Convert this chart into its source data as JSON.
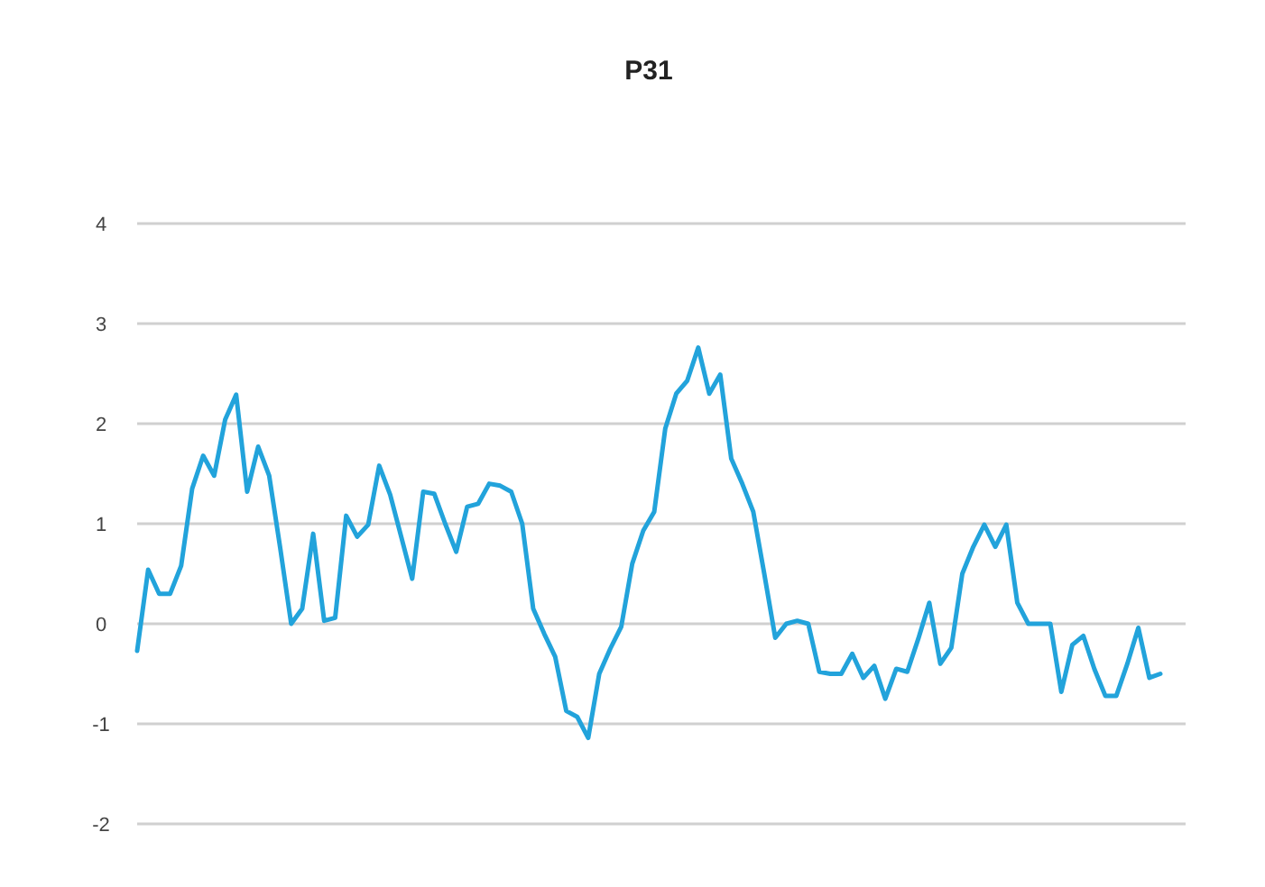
{
  "chart_data": {
    "type": "line",
    "title": "P31",
    "categories": [
      null,
      null,
      null,
      null,
      null,
      null,
      null,
      null,
      null,
      null,
      null,
      null,
      null,
      null,
      null,
      null,
      null,
      null,
      null,
      null,
      null,
      null,
      null,
      null,
      null,
      null,
      null,
      null,
      null,
      null,
      null,
      null,
      null,
      null,
      null,
      null,
      null,
      null,
      null,
      null,
      null,
      null,
      null,
      null,
      null,
      null,
      null,
      null,
      null,
      null,
      null,
      null,
      null,
      null,
      null,
      null,
      null,
      null,
      null,
      null,
      null,
      null,
      null,
      null,
      null,
      null,
      null,
      null,
      null,
      null,
      null,
      null,
      null,
      null,
      null,
      null,
      null,
      null,
      null,
      null,
      null,
      null,
      null,
      null,
      null,
      null,
      null,
      null,
      null,
      null,
      null,
      null,
      null,
      null
    ],
    "series": [
      {
        "color": "#22a3db",
        "values": [
          -0.27,
          0.54,
          0.3,
          0.3,
          0.58,
          1.35,
          1.68,
          1.48,
          2.04,
          2.29,
          1.32,
          1.77,
          1.48,
          0.76,
          0,
          0.15,
          0.9,
          0.03,
          0.06,
          1.08,
          0.87,
          0.99,
          1.58,
          1.29,
          0.87,
          0.45,
          1.32,
          1.3,
          1.0,
          0.72,
          1.17,
          1.2,
          1.4,
          1.38,
          1.32,
          1.0,
          0.15,
          -0.1,
          -0.33,
          -0.87,
          -0.93,
          -1.14,
          -0.5,
          -0.25,
          -0.03,
          0.6,
          0.93,
          1.12,
          1.95,
          2.3,
          2.43,
          2.76,
          2.3,
          2.49,
          1.65,
          1.4,
          1.12,
          0.5,
          -0.14,
          0,
          0.03,
          0,
          -0.48,
          -0.5,
          -0.5,
          -0.3,
          -0.54,
          -0.42,
          -0.75,
          -0.45,
          -0.48,
          -0.15,
          0.21,
          -0.4,
          -0.24,
          0.5,
          0.77,
          0.99,
          0.77,
          0.99,
          0.21,
          0,
          0,
          0,
          -0.68,
          -0.21,
          -0.12,
          -0.45,
          -0.72,
          -0.72,
          -0.4,
          -0.04,
          -0.54,
          -0.5
        ]
      }
    ],
    "ylim": [
      -2,
      4
    ],
    "yticks": [
      -2,
      -1,
      0,
      1,
      2,
      3,
      4
    ],
    "grid": "y",
    "tick_labels": "y",
    "marker": "none",
    "line_style": "solid"
  }
}
